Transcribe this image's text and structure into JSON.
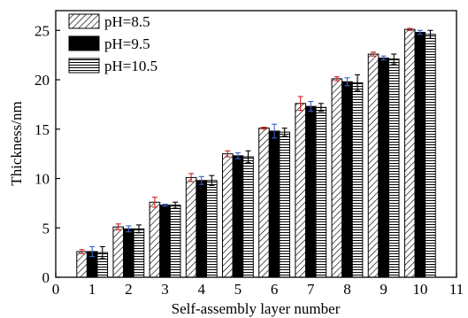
{
  "chart_data": {
    "type": "bar",
    "xlabel": "Self-assembly layer number",
    "ylabel": "Thickness/nm",
    "xlim": [
      0,
      11
    ],
    "ylim": [
      0,
      27
    ],
    "xticks": [
      "0",
      "1",
      "2",
      "3",
      "4",
      "5",
      "6",
      "7",
      "8",
      "9",
      "10",
      "11"
    ],
    "yticks": [
      "0",
      "5",
      "10",
      "15",
      "20",
      "25"
    ],
    "categories": [
      1,
      2,
      3,
      4,
      5,
      6,
      7,
      8,
      9,
      10
    ],
    "legend_position": "top-left",
    "series": [
      {
        "name": "pH=8.5",
        "pattern": "diagonal-hatch",
        "error_color": "#d62020",
        "values": [
          2.6,
          5.1,
          7.6,
          10.1,
          12.5,
          15.1,
          17.6,
          20.1,
          22.6,
          25.1
        ],
        "errors": [
          0.2,
          0.3,
          0.5,
          0.4,
          0.3,
          0.1,
          0.7,
          0.2,
          0.2,
          0.1
        ]
      },
      {
        "name": "pH=9.5",
        "pattern": "solid-black",
        "error_color": "#3a5fcd",
        "values": [
          2.6,
          4.9,
          7.3,
          9.8,
          12.3,
          14.8,
          17.3,
          19.8,
          22.2,
          24.8
        ],
        "errors": [
          0.5,
          0.3,
          0.1,
          0.4,
          0.3,
          0.7,
          0.5,
          0.4,
          0.2,
          0.2
        ]
      },
      {
        "name": "pH=10.5",
        "pattern": "horizontal-lines",
        "error_color": "#000000",
        "values": [
          2.5,
          4.9,
          7.3,
          9.8,
          12.2,
          14.7,
          17.2,
          19.7,
          22.1,
          24.6
        ],
        "errors": [
          0.6,
          0.4,
          0.3,
          0.5,
          0.6,
          0.4,
          0.4,
          0.8,
          0.5,
          0.4
        ]
      }
    ]
  }
}
